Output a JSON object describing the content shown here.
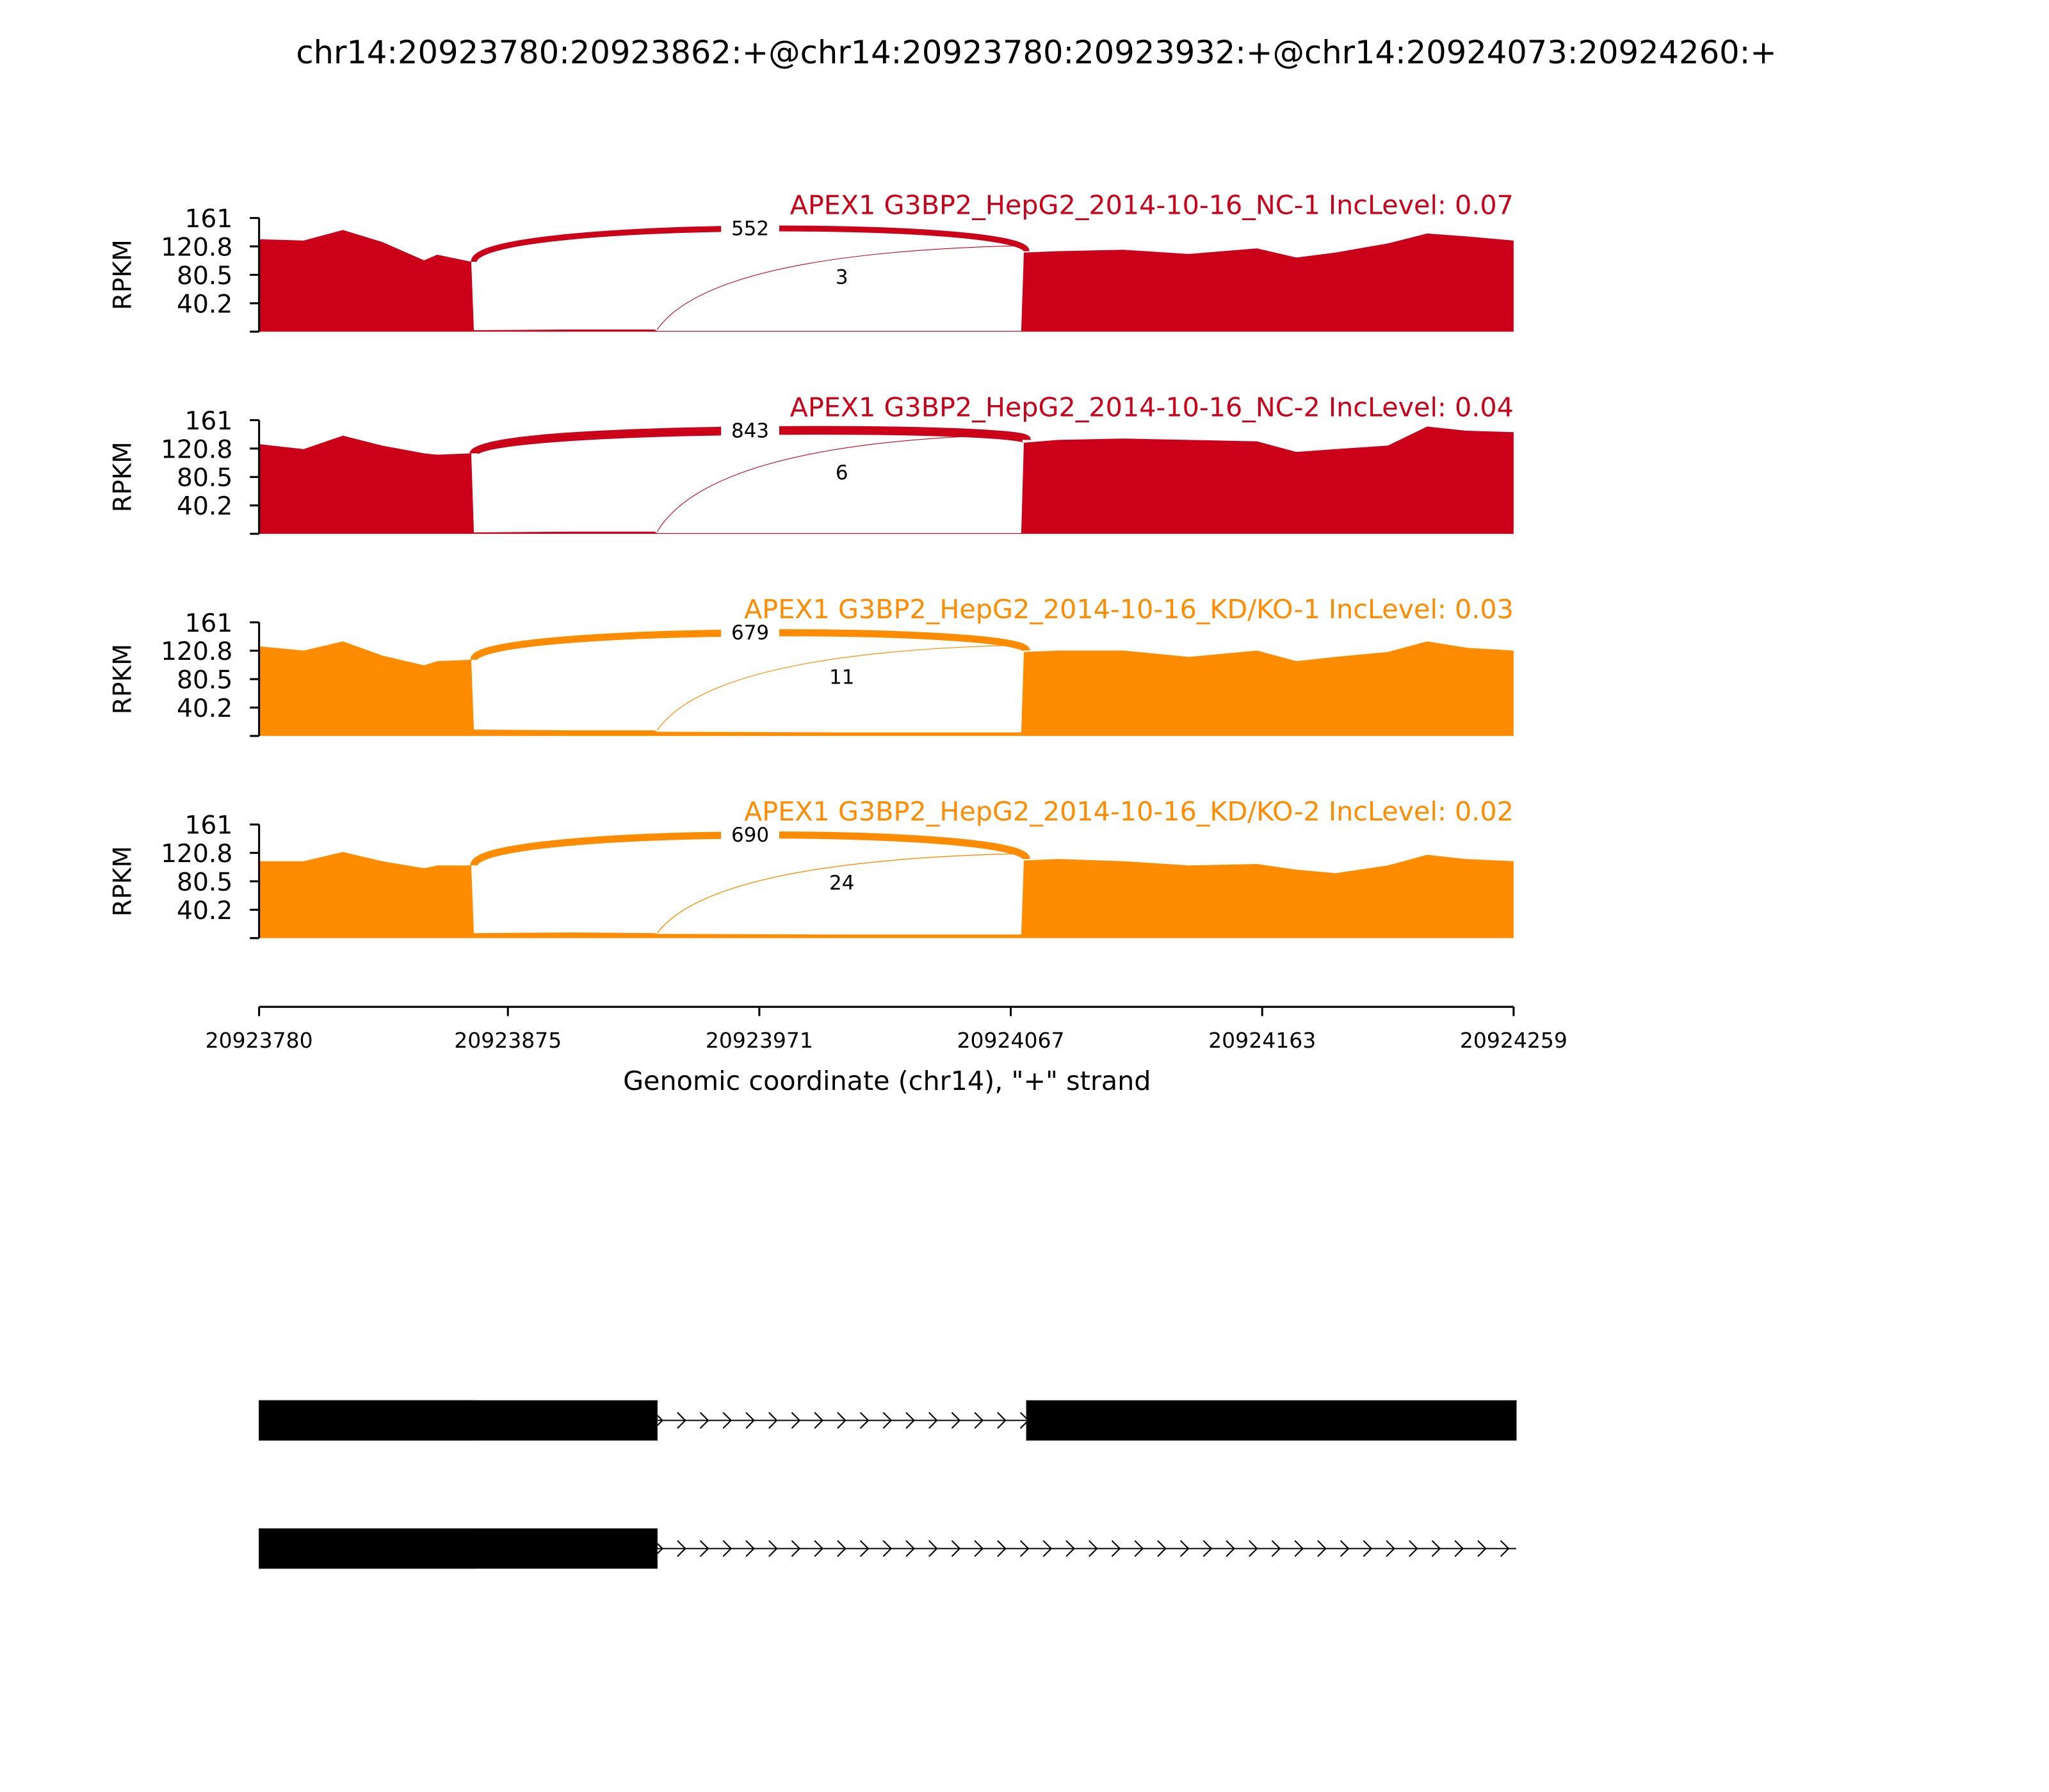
{
  "chart_data": {
    "type": "sashimi",
    "title": "chr14:20923780:20923862:+@chr14:20923780:20923932:+@chr14:20924073:20924260:+",
    "xlabel": "Genomic coordinate (chr14), \"+\" strand",
    "ylabel": "RPKM",
    "xlim": [
      20923780,
      20924259
    ],
    "xticks": [
      20923780,
      20923875,
      20923971,
      20924067,
      20924163,
      20924259
    ],
    "ylim": [
      0,
      161
    ],
    "yticks": [
      40.2,
      80.5,
      120.8,
      161
    ],
    "x": [
      20923780,
      20923797,
      20923812,
      20923827,
      20923843,
      20923848,
      20923861,
      20923862,
      20923900,
      20923931,
      20923932,
      20924000,
      20924071,
      20924072,
      20924085,
      20924110,
      20924135,
      20924161,
      20924176,
      20924191,
      20924211,
      20924226,
      20924241,
      20924259
    ],
    "series": [
      {
        "name": "APEX1 G3BP2_HepG2_2014-10-16_NC-1 IncLevel: 0.07",
        "color": "#cc0018",
        "values": [
          131,
          129,
          144,
          127,
          101,
          109,
          99,
          2,
          3,
          3,
          1,
          1,
          1,
          112,
          114,
          116,
          110,
          118,
          105,
          112,
          125,
          139,
          135,
          129
        ],
        "junctions": [
          {
            "from": 20923862,
            "to": 20924073,
            "count": 552
          },
          {
            "from": 20923932,
            "to": 20924073,
            "count": 3
          }
        ]
      },
      {
        "name": "APEX1 G3BP2_HepG2_2014-10-16_NC-2 IncLevel: 0.04",
        "color": "#cc0018",
        "values": [
          127,
          120,
          139,
          125,
          114,
          112,
          114,
          2,
          3,
          3,
          1,
          1,
          1,
          129,
          133,
          135,
          133,
          131,
          116,
          120,
          125,
          152,
          146,
          144
        ],
        "junctions": [
          {
            "from": 20923862,
            "to": 20924073,
            "count": 843
          },
          {
            "from": 20923932,
            "to": 20924073,
            "count": 6
          }
        ]
      },
      {
        "name": "APEX1 G3BP2_HepG2_2014-10-16_KD/KO-1 IncLevel: 0.03",
        "color": "#ff8c00",
        "values": [
          127,
          121,
          134,
          114,
          100,
          106,
          108,
          9,
          8,
          8,
          6,
          5,
          5,
          119,
          121,
          121,
          112,
          121,
          106,
          112,
          119,
          134,
          125,
          121
        ],
        "junctions": [
          {
            "from": 20923862,
            "to": 20924073,
            "count": 679
          },
          {
            "from": 20923932,
            "to": 20924073,
            "count": 11
          }
        ]
      },
      {
        "name": "APEX1 G3BP2_HepG2_2014-10-16_KD/KO-2 IncLevel: 0.02",
        "color": "#ff8c00",
        "values": [
          109,
          109,
          122,
          109,
          99,
          103,
          103,
          7,
          8,
          7,
          6,
          5,
          5,
          110,
          112,
          109,
          103,
          105,
          97,
          92,
          103,
          118,
          112,
          109
        ],
        "junctions": [
          {
            "from": 20923862,
            "to": 20924073,
            "count": 690
          },
          {
            "from": 20923932,
            "to": 20924073,
            "count": 24
          }
        ]
      }
    ],
    "transcripts": [
      {
        "exons": [
          [
            20923780,
            20923862
          ],
          [
            20923780,
            20923932
          ],
          [
            20924073,
            20924260
          ]
        ],
        "span": [
          20923780,
          20924260
        ]
      },
      {
        "exons": [
          [
            20923780,
            20923862
          ],
          [
            20923780,
            20923932
          ]
        ],
        "span": [
          20923780,
          20924260
        ]
      }
    ]
  }
}
